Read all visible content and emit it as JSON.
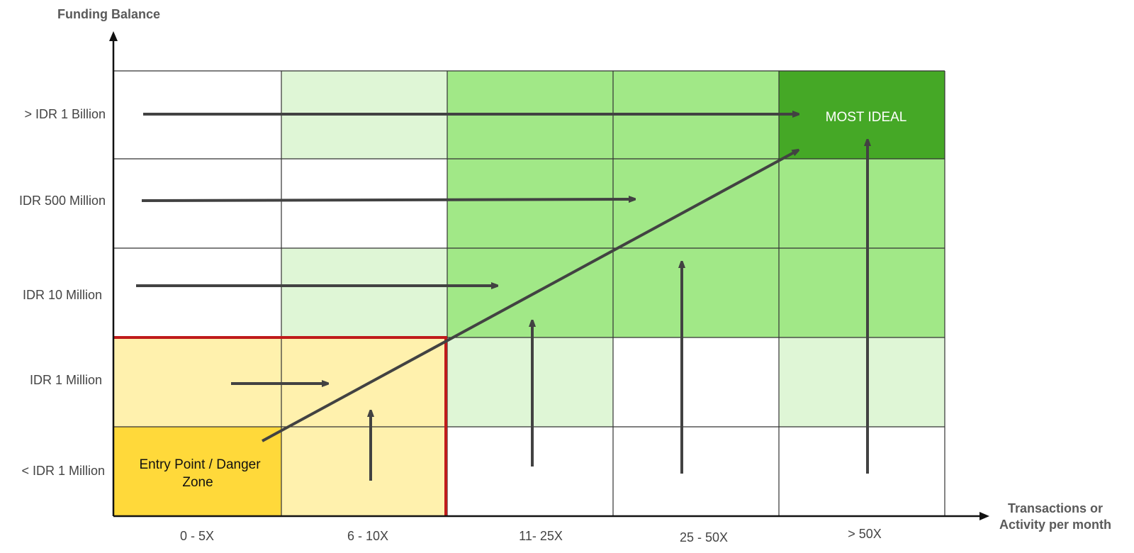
{
  "y_axis": {
    "title": "Funding Balance",
    "levels": [
      "< IDR 1 Million",
      "IDR 1 Million",
      "IDR 10 Million",
      "IDR 500 Million",
      "> IDR 1 Billion"
    ]
  },
  "x_axis": {
    "title_line1": "Transactions or",
    "title_line2": "Activity per month",
    "levels": [
      "0 - 5X",
      "6 - 10X",
      "11- 25X",
      "25 - 50X",
      "> 50X"
    ]
  },
  "zones": {
    "entry_line1": "Entry Point / Danger",
    "entry_line2": "Zone",
    "ideal": "MOST IDEAL"
  },
  "colors": {
    "white": "#ffffff",
    "light_green": "#dff6d6",
    "mid_green": "#a1e887",
    "dark_green": "#45a826",
    "light_yellow": "#fff1ad",
    "dark_yellow": "#ffd93a",
    "arrow": "#424242",
    "danger_border": "#bf1b1b",
    "grid_line": "#333333"
  },
  "cells": [
    [
      "dark_yellow",
      "light_yellow",
      "white",
      "white",
      "white"
    ],
    [
      "light_yellow",
      "light_yellow",
      "light_green",
      "white",
      "light_green"
    ],
    [
      "white",
      "light_green",
      "mid_green",
      "mid_green",
      "mid_green"
    ],
    [
      "white",
      "white",
      "mid_green",
      "mid_green",
      "mid_green"
    ],
    [
      "white",
      "light_green",
      "mid_green",
      "mid_green",
      "dark_green"
    ]
  ]
}
